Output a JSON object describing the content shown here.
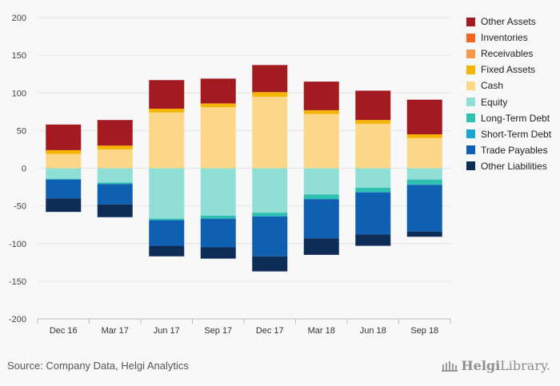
{
  "chart_data": {
    "type": "bar",
    "stacked": true,
    "categories": [
      "Dec 16",
      "Mar 17",
      "Jun 17",
      "Sep 17",
      "Dec 17",
      "Mar 18",
      "Jun 18",
      "Sep 18"
    ],
    "ylim": [
      -200,
      200
    ],
    "yticks": [
      -200,
      -150,
      -100,
      -50,
      0,
      50,
      100,
      150,
      200
    ],
    "grid": true,
    "legend_position": "right",
    "series": [
      {
        "name": "Other Assets",
        "side": "asset",
        "color": "#a31b20",
        "values": [
          34,
          34,
          38,
          33,
          36,
          38,
          39,
          46
        ]
      },
      {
        "name": "Inventories",
        "side": "asset",
        "color": "#f26522",
        "values": [
          0,
          0,
          0,
          0,
          0,
          0,
          0,
          0
        ]
      },
      {
        "name": "Receivables",
        "side": "asset",
        "color": "#f7984a",
        "values": [
          0,
          0,
          0,
          0,
          0,
          0,
          0,
          0
        ]
      },
      {
        "name": "Fixed Assets",
        "side": "asset",
        "color": "#f5b400",
        "values": [
          5,
          5,
          5,
          5,
          6,
          5,
          5,
          5
        ]
      },
      {
        "name": "Cash",
        "side": "asset",
        "color": "#fcd788",
        "values": [
          19,
          25,
          74,
          81,
          95,
          72,
          59,
          40
        ]
      },
      {
        "name": "Equity",
        "side": "liability",
        "color": "#8fdfd7",
        "values": [
          -14,
          -19,
          -67,
          -63,
          -59,
          -35,
          -26,
          -15
        ]
      },
      {
        "name": "Long-Term Debt",
        "side": "liability",
        "color": "#30c0b2",
        "values": [
          -1,
          -2,
          -2,
          -4,
          -5,
          -6,
          -6,
          -7
        ]
      },
      {
        "name": "Short-Term Debt",
        "side": "liability",
        "color": "#1aa6cf",
        "values": [
          0,
          0,
          0,
          0,
          0,
          0,
          0,
          0
        ]
      },
      {
        "name": "Trade Payables",
        "side": "liability",
        "color": "#0f5fb3",
        "values": [
          -25,
          -27,
          -34,
          -38,
          -53,
          -52,
          -56,
          -62
        ]
      },
      {
        "name": "Other Liabilities",
        "side": "liability",
        "color": "#0d2d57",
        "values": [
          -18,
          -17,
          -14,
          -15,
          -20,
          -22,
          -15,
          -7
        ]
      }
    ]
  },
  "legend": [
    {
      "label": "Other Assets",
      "color": "#a31b20"
    },
    {
      "label": "Inventories",
      "color": "#f26522"
    },
    {
      "label": "Receivables",
      "color": "#f7984a"
    },
    {
      "label": "Fixed Assets",
      "color": "#f5b400"
    },
    {
      "label": "Cash",
      "color": "#fcd788"
    },
    {
      "label": "Equity",
      "color": "#8fdfd7"
    },
    {
      "label": "Long-Term Debt",
      "color": "#30c0b2"
    },
    {
      "label": "Short-Term Debt",
      "color": "#1aa6cf"
    },
    {
      "label": "Trade Payables",
      "color": "#0f5fb3"
    },
    {
      "label": "Other Liabilities",
      "color": "#0d2d57"
    }
  ],
  "footer": {
    "source": "Source: Company Data, Helgi Analytics",
    "brand_bold": "Helgi",
    "brand_rest": "Library."
  }
}
